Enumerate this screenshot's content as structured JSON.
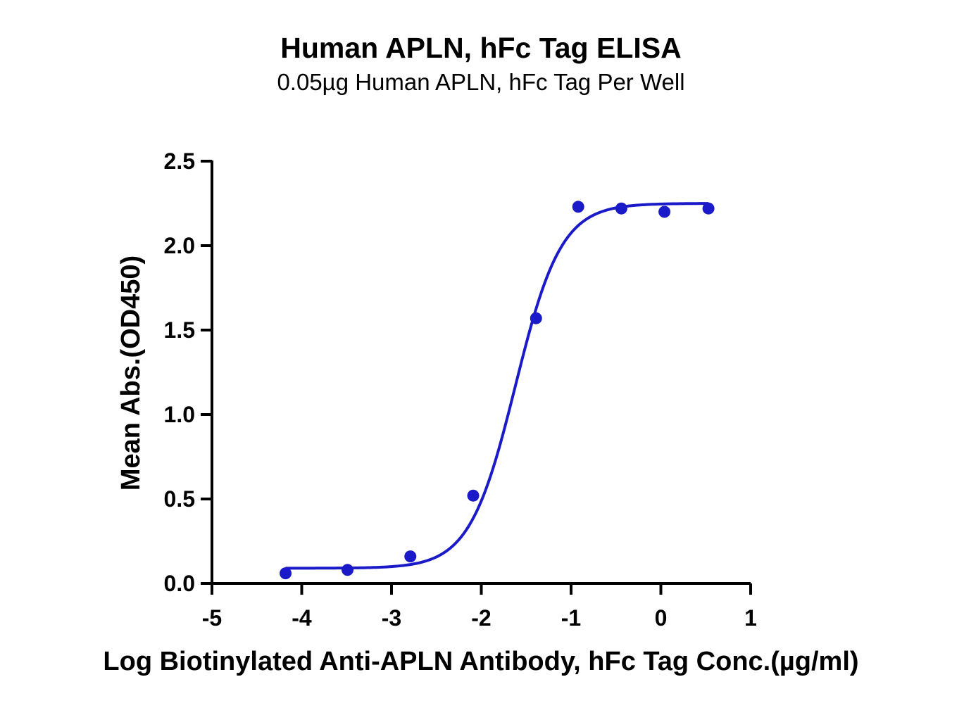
{
  "chart_data": {
    "type": "scatter",
    "title": "Human APLN, hFc Tag ELISA",
    "subtitle": "0.05µg Human APLN, hFc Tag Per Well",
    "xlabel": "Log Biotinylated Anti-APLN Antibody, hFc Tag Conc.(µg/ml)",
    "ylabel": "Mean Abs.(OD450)",
    "xlim": [
      -5,
      1
    ],
    "ylim": [
      0,
      2.5
    ],
    "x_ticks": [
      -5,
      -4,
      -3,
      -2,
      -1,
      0,
      1
    ],
    "y_ticks": [
      0.0,
      0.5,
      1.0,
      1.5,
      2.0,
      2.5
    ],
    "x_tick_labels": [
      "-5",
      "-4",
      "-3",
      "-2",
      "-1",
      "0",
      "1"
    ],
    "y_tick_labels": [
      "0.0",
      "0.5",
      "1.0",
      "1.5",
      "2.0",
      "2.5"
    ],
    "grid": false,
    "color": "#1a1ac8",
    "series": [
      {
        "x": [
          -4.18,
          -3.49,
          -2.79,
          -2.09,
          -1.39,
          -0.92,
          -0.44,
          0.04,
          0.53
        ],
        "y": [
          0.06,
          0.08,
          0.16,
          0.52,
          1.57,
          2.23,
          2.22,
          2.2,
          2.22
        ]
      }
    ],
    "fit_curve": {
      "type": "4PL",
      "bottom": 0.09,
      "top": 2.25,
      "log_ec50": -1.62,
      "hill_slope": 1.7,
      "x_range": [
        -4.18,
        0.53
      ]
    }
  }
}
